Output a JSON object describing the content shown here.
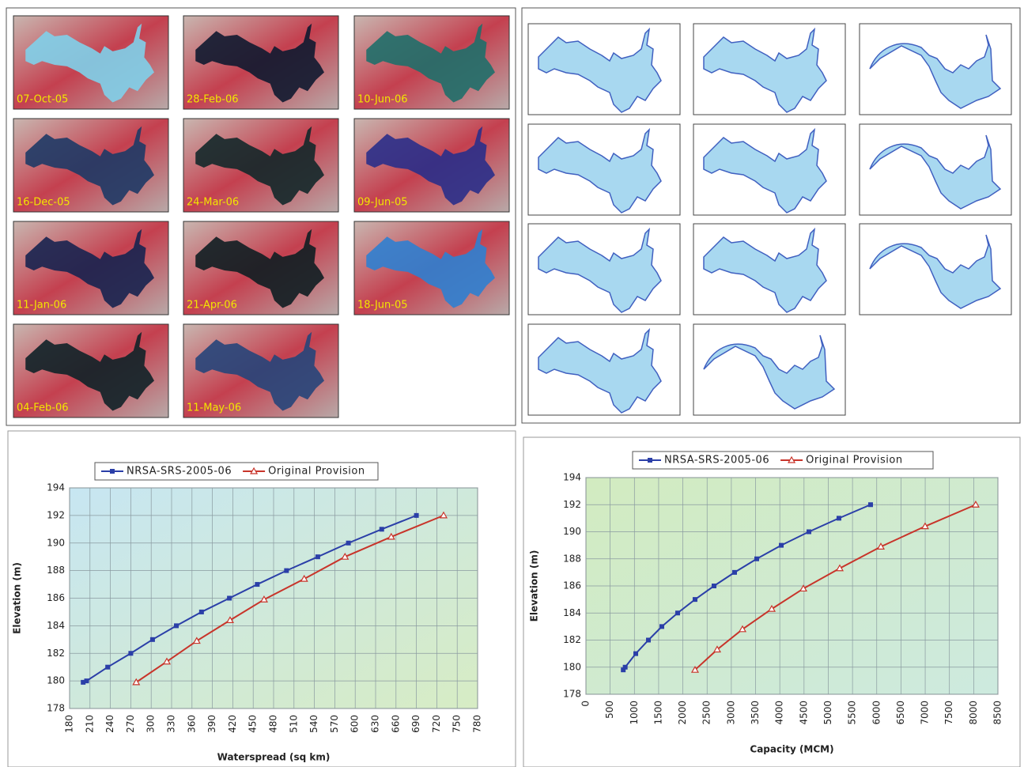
{
  "images": {
    "labels": [
      "07-Oct-05",
      "28-Feb-06",
      "10-Jun-06",
      "16-Dec-05",
      "24-Mar-06",
      "09-Jun-05",
      "11-Jan-06",
      "21-Apr-06",
      "18-Jun-05",
      "04-Feb-06",
      "11-May-06"
    ]
  },
  "chart_data": [
    {
      "type": "line",
      "xlabel": "Waterspread (sq km)",
      "ylabel": "Elevation (m)",
      "xlim": [
        180,
        780
      ],
      "xticks": [
        180,
        210,
        240,
        270,
        300,
        330,
        360,
        390,
        420,
        450,
        480,
        510,
        540,
        570,
        600,
        630,
        660,
        690,
        720,
        750,
        780
      ],
      "ylim": [
        178,
        194
      ],
      "yticks": [
        178,
        180,
        182,
        184,
        186,
        188,
        190,
        192,
        194
      ],
      "grid": true,
      "series": [
        {
          "name": "NRSA-SRS-2005-06",
          "color": "#2b3fa8",
          "marker": "square",
          "x": [
            200,
            205,
            236,
            270,
            302,
            337,
            374,
            415,
            456,
            499,
            545,
            590,
            639,
            690
          ],
          "values": [
            179.9,
            180,
            181,
            182,
            183,
            184,
            185,
            186,
            187,
            188,
            189,
            190,
            191,
            192
          ]
        },
        {
          "name": "Original Provision",
          "color": "#c8342a",
          "marker": "triangle",
          "x": [
            278,
            323,
            367,
            416,
            466,
            525,
            585,
            653,
            730
          ],
          "values": [
            179.9,
            181.4,
            182.9,
            184.4,
            185.9,
            187.4,
            189,
            190.45,
            192
          ]
        }
      ]
    },
    {
      "type": "line",
      "xlabel": "Capacity (MCM)",
      "ylabel": "Elevation (m)",
      "xlim": [
        0,
        8500
      ],
      "xticks": [
        0,
        500,
        1000,
        1500,
        2000,
        2500,
        3000,
        3500,
        4000,
        4500,
        5000,
        5500,
        6000,
        6500,
        7000,
        7500,
        8000,
        8500
      ],
      "ylim": [
        178,
        194
      ],
      "yticks": [
        178,
        180,
        182,
        184,
        186,
        188,
        190,
        192,
        194
      ],
      "grid": true,
      "series": [
        {
          "name": "NRSA-SRS-2005-06",
          "color": "#2b3fa8",
          "marker": "square",
          "x": [
            770,
            810,
            1028,
            1289,
            1566,
            1892,
            2251,
            2643,
            3067,
            3524,
            4030,
            4601,
            5220,
            5873
          ],
          "values": [
            179.8,
            180,
            181,
            182,
            183,
            184,
            185,
            186,
            187,
            188,
            189,
            190,
            191,
            192
          ]
        },
        {
          "name": "Original Provision",
          "color": "#c8342a",
          "marker": "triangle",
          "x": [
            2251,
            2708,
            3230,
            3834,
            4486,
            5237,
            6085,
            6998,
            8042
          ],
          "values": [
            179.8,
            181.3,
            182.8,
            184.3,
            185.8,
            187.3,
            188.9,
            190.4,
            192
          ]
        }
      ]
    }
  ]
}
